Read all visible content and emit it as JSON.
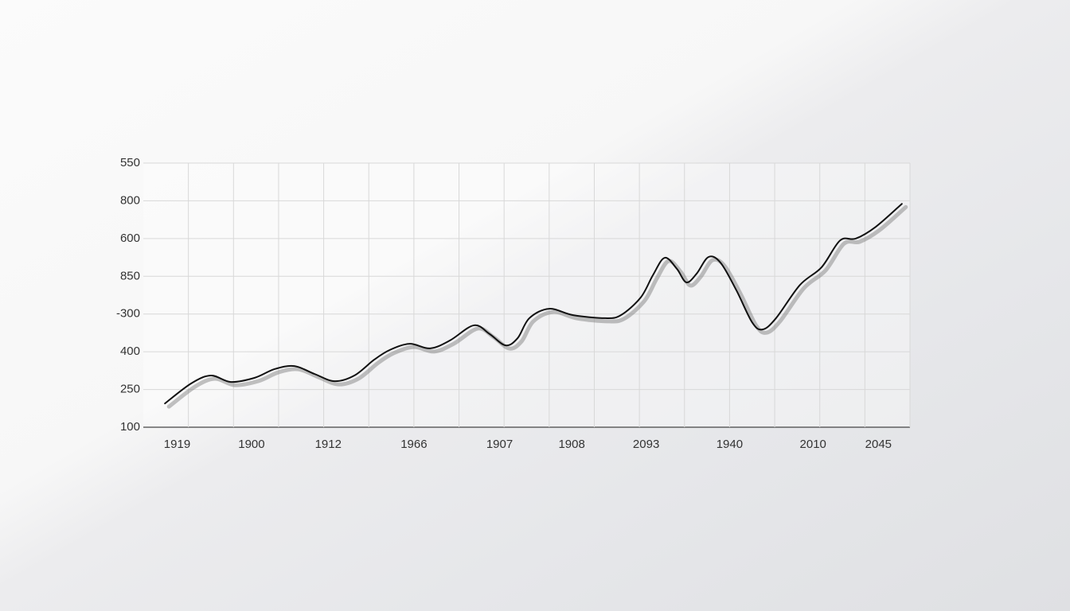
{
  "chart_data": {
    "type": "line",
    "x": [
      0.48,
      1.06,
      1.5,
      1.94,
      2.47,
      2.91,
      3.35,
      3.8,
      4.24,
      4.68,
      5.12,
      5.47,
      5.91,
      6.36,
      6.8,
      7.33,
      7.68,
      8.03,
      8.3,
      8.56,
      9.0,
      9.53,
      10.24,
      10.59,
      11.03,
      11.3,
      11.56,
      11.83,
      12.04,
      12.27,
      12.53,
      12.8,
      13.15,
      13.5,
      13.73,
      14.03,
      14.56,
      15.04,
      15.45,
      15.8,
      16.24,
      16.82
    ],
    "series": [
      {
        "color": "#111111",
        "values": [
          0.63,
          1.16,
          1.37,
          1.2,
          1.31,
          1.54,
          1.62,
          1.41,
          1.22,
          1.37,
          1.79,
          2.05,
          2.21,
          2.09,
          2.3,
          2.7,
          2.47,
          2.17,
          2.36,
          2.89,
          3.14,
          2.97,
          2.89,
          2.97,
          3.44,
          4.03,
          4.49,
          4.2,
          3.84,
          4.07,
          4.51,
          4.36,
          3.63,
          2.78,
          2.59,
          2.89,
          3.77,
          4.24,
          4.95,
          5.0,
          5.31,
          5.92
        ]
      }
    ],
    "xlim": [
      0,
      17
    ],
    "xticks": [
      {
        "value": 0.75,
        "label": "1919"
      },
      {
        "value": 2.4,
        "label": "1900"
      },
      {
        "value": 4.1,
        "label": "1912"
      },
      {
        "value": 6,
        "label": "1966"
      },
      {
        "value": 7.9,
        "label": "1907"
      },
      {
        "value": 9.5,
        "label": "1908"
      },
      {
        "value": 11.15,
        "label": "2093"
      },
      {
        "value": 13,
        "label": "1940"
      },
      {
        "value": 14.85,
        "label": "2010"
      },
      {
        "value": 16.3,
        "label": "2045"
      }
    ],
    "xgrid": [
      1,
      2,
      3,
      4,
      5,
      6,
      7,
      8,
      9,
      10,
      11,
      12,
      13,
      14,
      15,
      16,
      17
    ],
    "ylim": [
      0,
      7
    ],
    "yticks": [
      {
        "value": 0,
        "label": "100"
      },
      {
        "value": 1,
        "label": "250"
      },
      {
        "value": 2,
        "label": "400"
      },
      {
        "value": 3,
        "label": "-300"
      },
      {
        "value": 4,
        "label": "850"
      },
      {
        "value": 5,
        "label": "600"
      },
      {
        "value": 6,
        "label": "800"
      },
      {
        "value": 7,
        "label": "550"
      }
    ],
    "grid": true
  }
}
